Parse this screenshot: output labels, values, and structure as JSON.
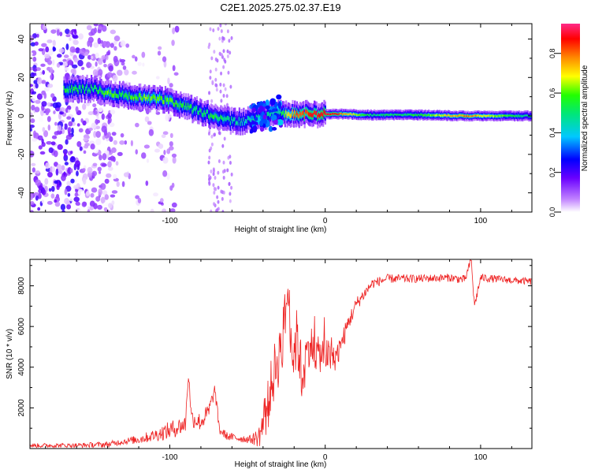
{
  "title": "C2E1.2025.275.02.37.E19",
  "colors": {
    "snr_line": "#ee2222",
    "axis": "#000000",
    "background": "#ffffff"
  },
  "chart_data": [
    {
      "type": "heatmap",
      "title": "C2E1.2025.275.02.37.E19",
      "xlabel": "Height of straight line (km)",
      "ylabel": "Frequency (Hz)",
      "xlim": [
        -190,
        133
      ],
      "ylim": [
        -50,
        48
      ],
      "xticks": [
        -100,
        0,
        100
      ],
      "yticks": [
        -40,
        -20,
        0,
        20,
        40
      ],
      "colorbar": {
        "label": "Normalized spectral amplitude",
        "range": [
          0,
          0.95
        ],
        "ticks": [
          0.0,
          0.2,
          0.4,
          0.6,
          0.8
        ],
        "tick_labels": [
          "0.0",
          "0.2",
          "0.4",
          "0.6",
          "0.8"
        ]
      },
      "ridge": {
        "description": "dominant frequency vs height",
        "x": [
          -168,
          -150,
          -140,
          -130,
          -120,
          -110,
          -100,
          -90,
          -80,
          -72,
          -65,
          -55,
          -45,
          -38,
          -30,
          -20,
          -10,
          0,
          10,
          30,
          60,
          90,
          133
        ],
        "y": [
          14,
          14,
          12,
          11,
          10,
          9,
          8,
          5,
          2,
          0,
          -2,
          -3,
          -1,
          0,
          2,
          1,
          1,
          1,
          1,
          0.5,
          0.5,
          0,
          0
        ],
        "amplitude": [
          0.55,
          0.5,
          0.6,
          0.55,
          0.6,
          0.62,
          0.6,
          0.55,
          0.5,
          0.55,
          0.5,
          0.45,
          0.45,
          0.5,
          0.45,
          0.8,
          0.85,
          0.9,
          0.8,
          0.5,
          0.55,
          0.8,
          0.45
        ]
      },
      "noise_zone_x": [
        -190,
        -135
      ]
    },
    {
      "type": "line",
      "xlabel": "Height of straight line (km)",
      "ylabel": "SNR (10 * v/v)",
      "xlim": [
        -190,
        133
      ],
      "ylim": [
        0,
        9300
      ],
      "xticks": [
        -100,
        0,
        100
      ],
      "yticks": [
        2000,
        4000,
        6000,
        8000
      ],
      "series": [
        {
          "name": "SNR",
          "x": [
            -190,
            -160,
            -140,
            -130,
            -120,
            -110,
            -100,
            -90,
            -88,
            -86,
            -80,
            -75,
            -71,
            -68,
            -63,
            -55,
            -48,
            -43,
            -38,
            -35,
            -32,
            -28,
            -24,
            -21,
            -18,
            -15,
            -10,
            -5,
            0,
            5,
            10,
            15,
            20,
            30,
            40,
            60,
            80,
            90,
            94,
            96,
            100,
            115,
            133
          ],
          "values": [
            150,
            160,
            200,
            350,
            450,
            650,
            900,
            1200,
            3700,
            1500,
            1300,
            1800,
            2900,
            900,
            600,
            500,
            450,
            550,
            1600,
            3000,
            4000,
            5000,
            7800,
            4500,
            5500,
            3500,
            5200,
            4600,
            4700,
            4300,
            5000,
            6200,
            7100,
            8100,
            8350,
            8350,
            8400,
            8300,
            9300,
            7000,
            8400,
            8300,
            8200
          ],
          "noise_amplitude": [
            110,
            110,
            150,
            150,
            220,
            300,
            450,
            450,
            300,
            450,
            450,
            450,
            300,
            250,
            200,
            200,
            200,
            500,
            1300,
            1300,
            1500,
            1500,
            1200,
            1500,
            1500,
            1500,
            1000,
            900,
            900,
            700,
            600,
            450,
            350,
            250,
            220,
            200,
            200,
            220,
            200,
            250,
            200,
            180,
            180
          ]
        }
      ]
    }
  ]
}
